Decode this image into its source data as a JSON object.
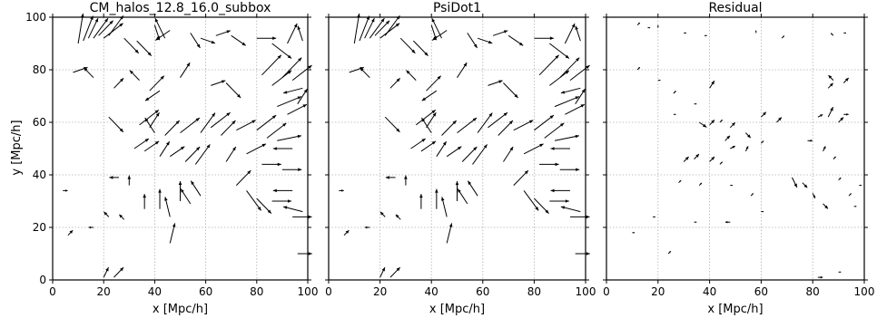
{
  "chart_data": [
    {
      "type": "quiver",
      "title": "CM_halos_12.8_16.0_subbox",
      "xlabel": "x [Mpc/h]",
      "ylabel": "y [Mpc/h]",
      "xlim": [
        0,
        100
      ],
      "ylim": [
        0,
        100
      ],
      "xticks": [
        "0",
        "20",
        "40",
        "60",
        "80",
        "100"
      ],
      "yticks": [
        "0",
        "20",
        "40",
        "60",
        "80",
        "100"
      ],
      "grid": true,
      "vectors": [
        [
          10,
          90,
          1,
          6
        ],
        [
          12,
          91,
          2,
          5
        ],
        [
          14,
          92,
          2,
          4
        ],
        [
          16,
          92,
          3,
          4
        ],
        [
          18,
          93,
          3,
          3
        ],
        [
          20,
          92,
          4,
          3
        ],
        [
          22,
          93,
          3,
          4
        ],
        [
          28,
          92,
          3,
          -3
        ],
        [
          33,
          91,
          3,
          -3
        ],
        [
          40,
          97,
          1,
          -3
        ],
        [
          44,
          92,
          -2,
          4
        ],
        [
          46,
          95,
          -3,
          -2
        ],
        [
          54,
          94,
          2,
          -3
        ],
        [
          58,
          92,
          3,
          -1
        ],
        [
          64,
          93,
          3,
          1
        ],
        [
          70,
          93,
          3,
          -2
        ],
        [
          80,
          92,
          4,
          0
        ],
        [
          86,
          90,
          4,
          -3
        ],
        [
          92,
          90,
          2,
          4
        ],
        [
          98,
          91,
          -1,
          3
        ],
        [
          8,
          79,
          3,
          1
        ],
        [
          16,
          77,
          -2,
          2
        ],
        [
          24,
          73,
          2,
          2
        ],
        [
          34,
          76,
          -2,
          2
        ],
        [
          38,
          72,
          3,
          3
        ],
        [
          42,
          72,
          -3,
          -2
        ],
        [
          50,
          77,
          2,
          3
        ],
        [
          62,
          74,
          3,
          1
        ],
        [
          68,
          75,
          3,
          -3
        ],
        [
          82,
          78,
          4,
          4
        ],
        [
          86,
          74,
          4,
          3
        ],
        [
          90,
          77,
          4,
          4
        ],
        [
          94,
          76,
          4,
          3
        ],
        [
          98,
          73,
          -4,
          -1
        ],
        [
          88,
          66,
          5,
          2
        ],
        [
          92,
          63,
          4,
          2
        ],
        [
          96,
          67,
          2,
          3
        ],
        [
          22,
          62,
          3,
          -3
        ],
        [
          34,
          59,
          4,
          3
        ],
        [
          38,
          58,
          2,
          3
        ],
        [
          40,
          56,
          -2,
          3
        ],
        [
          44,
          55,
          3,
          3
        ],
        [
          50,
          56,
          4,
          3
        ],
        [
          58,
          56,
          3,
          4
        ],
        [
          62,
          58,
          4,
          3
        ],
        [
          66,
          55,
          3,
          3
        ],
        [
          72,
          57,
          4,
          2
        ],
        [
          80,
          57,
          4,
          3
        ],
        [
          84,
          54,
          4,
          3
        ],
        [
          88,
          53,
          5,
          1
        ],
        [
          94,
          50,
          -4,
          0
        ],
        [
          32,
          50,
          3,
          2
        ],
        [
          36,
          49,
          3,
          2
        ],
        [
          42,
          47,
          2,
          3
        ],
        [
          46,
          47,
          3,
          2
        ],
        [
          52,
          45,
          3,
          3
        ],
        [
          56,
          44,
          3,
          4
        ],
        [
          68,
          45,
          2,
          3
        ],
        [
          76,
          48,
          4,
          2
        ],
        [
          82,
          44,
          4,
          0
        ],
        [
          90,
          42,
          4,
          0
        ],
        [
          26,
          39,
          -2,
          0
        ],
        [
          30,
          36,
          0,
          2
        ],
        [
          36,
          27,
          0,
          3
        ],
        [
          42,
          27,
          0,
          4
        ],
        [
          46,
          24,
          -1,
          4
        ],
        [
          50,
          30,
          0,
          4
        ],
        [
          54,
          29,
          -2,
          3
        ],
        [
          58,
          32,
          -2,
          3
        ],
        [
          72,
          36,
          3,
          3
        ],
        [
          76,
          34,
          3,
          -4
        ],
        [
          80,
          31,
          3,
          -3
        ],
        [
          86,
          30,
          4,
          0
        ],
        [
          94,
          34,
          -4,
          0
        ],
        [
          98,
          26,
          -4,
          1
        ],
        [
          46,
          14,
          1,
          4
        ],
        [
          22,
          24,
          -1,
          1
        ],
        [
          28,
          23,
          -1,
          1
        ],
        [
          16,
          20,
          -1,
          0
        ],
        [
          4,
          34,
          1,
          0
        ],
        [
          6,
          17,
          1,
          1
        ],
        [
          20,
          1,
          1,
          2
        ],
        [
          24,
          1,
          2,
          2
        ],
        [
          94,
          24,
          4,
          0
        ],
        [
          96,
          10,
          3,
          0
        ]
      ]
    },
    {
      "type": "quiver",
      "title": "PsiDot1",
      "xlabel": "x [Mpc/h]",
      "xlim": [
        0,
        100
      ],
      "ylim": [
        0,
        100
      ],
      "xticks": [
        "0",
        "20",
        "40",
        "60",
        "80",
        "100"
      ],
      "grid": true,
      "vectors": [
        [
          10,
          90,
          1,
          6
        ],
        [
          12,
          91,
          2,
          5
        ],
        [
          14,
          92,
          2,
          4
        ],
        [
          16,
          92,
          3,
          4
        ],
        [
          18,
          93,
          3,
          3
        ],
        [
          20,
          92,
          4,
          3
        ],
        [
          22,
          93,
          3,
          4
        ],
        [
          28,
          92,
          3,
          -3
        ],
        [
          33,
          91,
          3,
          -3
        ],
        [
          40,
          97,
          1,
          -3
        ],
        [
          44,
          92,
          -2,
          4
        ],
        [
          46,
          95,
          -3,
          -2
        ],
        [
          54,
          94,
          2,
          -3
        ],
        [
          58,
          92,
          3,
          -1
        ],
        [
          64,
          93,
          3,
          1
        ],
        [
          70,
          93,
          3,
          -2
        ],
        [
          80,
          92,
          4,
          0
        ],
        [
          86,
          90,
          4,
          -3
        ],
        [
          92,
          90,
          2,
          4
        ],
        [
          98,
          91,
          -1,
          3
        ],
        [
          8,
          79,
          3,
          1
        ],
        [
          16,
          77,
          -2,
          2
        ],
        [
          24,
          73,
          2,
          2
        ],
        [
          34,
          76,
          -2,
          2
        ],
        [
          38,
          72,
          3,
          3
        ],
        [
          42,
          72,
          -3,
          -2
        ],
        [
          50,
          77,
          2,
          3
        ],
        [
          62,
          74,
          3,
          1
        ],
        [
          68,
          75,
          3,
          -3
        ],
        [
          82,
          78,
          4,
          4
        ],
        [
          86,
          74,
          4,
          3
        ],
        [
          90,
          77,
          4,
          4
        ],
        [
          94,
          76,
          4,
          3
        ],
        [
          98,
          73,
          -4,
          -1
        ],
        [
          88,
          66,
          5,
          2
        ],
        [
          92,
          63,
          4,
          2
        ],
        [
          96,
          67,
          2,
          3
        ],
        [
          22,
          62,
          3,
          -3
        ],
        [
          34,
          59,
          4,
          3
        ],
        [
          38,
          58,
          2,
          3
        ],
        [
          40,
          56,
          -2,
          3
        ],
        [
          44,
          55,
          3,
          3
        ],
        [
          50,
          56,
          4,
          3
        ],
        [
          58,
          56,
          3,
          4
        ],
        [
          62,
          58,
          4,
          3
        ],
        [
          66,
          55,
          3,
          3
        ],
        [
          72,
          57,
          4,
          2
        ],
        [
          80,
          57,
          4,
          3
        ],
        [
          84,
          54,
          4,
          3
        ],
        [
          88,
          53,
          5,
          1
        ],
        [
          94,
          50,
          -4,
          0
        ],
        [
          32,
          50,
          3,
          2
        ],
        [
          36,
          49,
          3,
          2
        ],
        [
          42,
          47,
          2,
          3
        ],
        [
          46,
          47,
          3,
          2
        ],
        [
          52,
          45,
          3,
          3
        ],
        [
          56,
          44,
          3,
          4
        ],
        [
          68,
          45,
          2,
          3
        ],
        [
          76,
          48,
          4,
          2
        ],
        [
          82,
          44,
          4,
          0
        ],
        [
          90,
          42,
          4,
          0
        ],
        [
          26,
          39,
          -2,
          0
        ],
        [
          30,
          36,
          0,
          2
        ],
        [
          36,
          27,
          0,
          3
        ],
        [
          42,
          27,
          0,
          4
        ],
        [
          46,
          24,
          -1,
          4
        ],
        [
          50,
          30,
          0,
          4
        ],
        [
          54,
          29,
          -2,
          3
        ],
        [
          58,
          32,
          -2,
          3
        ],
        [
          72,
          36,
          3,
          3
        ],
        [
          76,
          34,
          3,
          -4
        ],
        [
          80,
          31,
          3,
          -3
        ],
        [
          86,
          30,
          4,
          0
        ],
        [
          94,
          34,
          -4,
          0
        ],
        [
          98,
          26,
          -4,
          1
        ],
        [
          46,
          14,
          1,
          4
        ],
        [
          22,
          24,
          -1,
          1
        ],
        [
          28,
          23,
          -1,
          1
        ],
        [
          16,
          20,
          -1,
          0
        ],
        [
          4,
          34,
          1,
          0
        ],
        [
          6,
          17,
          1,
          1
        ],
        [
          20,
          1,
          1,
          2
        ],
        [
          24,
          1,
          2,
          2
        ],
        [
          94,
          24,
          4,
          0
        ],
        [
          96,
          10,
          3,
          0
        ]
      ]
    },
    {
      "type": "quiver",
      "title": "Residual",
      "xlabel": "x [Mpc/h]",
      "xlim": [
        0,
        100
      ],
      "ylim": [
        0,
        100
      ],
      "xticks": [
        "0",
        "20",
        "40",
        "60",
        "80",
        "100"
      ],
      "grid": true,
      "vectors": [
        [
          12,
          97,
          0.5,
          0.5
        ],
        [
          16,
          96,
          0.5,
          0
        ],
        [
          20,
          96,
          0,
          0.5
        ],
        [
          30,
          94,
          0.5,
          0
        ],
        [
          38,
          93,
          0.5,
          0
        ],
        [
          58,
          94,
          0,
          0.5
        ],
        [
          68,
          92,
          0.5,
          0.5
        ],
        [
          88,
          93,
          -0.5,
          0.5
        ],
        [
          92,
          94,
          0.5,
          0
        ],
        [
          12,
          80,
          0.5,
          0.5
        ],
        [
          20,
          76,
          0.5,
          0
        ],
        [
          40,
          73,
          1,
          1.5
        ],
        [
          86,
          73,
          1,
          1
        ],
        [
          88,
          76,
          -1,
          1
        ],
        [
          92,
          75,
          1,
          1
        ],
        [
          26,
          71,
          0.5,
          0.5
        ],
        [
          34,
          67,
          0.5,
          0
        ],
        [
          26,
          63,
          0.5,
          0
        ],
        [
          36,
          60,
          1.5,
          -1
        ],
        [
          40,
          59,
          1,
          1
        ],
        [
          44,
          60,
          0.5,
          0.5
        ],
        [
          48,
          58,
          1,
          1
        ],
        [
          54,
          56,
          1,
          -1
        ],
        [
          60,
          62,
          1,
          1
        ],
        [
          66,
          60,
          1,
          1
        ],
        [
          82,
          62,
          1,
          0.5
        ],
        [
          86,
          62,
          1,
          2
        ],
        [
          90,
          60,
          1,
          1
        ],
        [
          92,
          63,
          1,
          0
        ],
        [
          46,
          53,
          1,
          1
        ],
        [
          48,
          50,
          1,
          0.5
        ],
        [
          54,
          49,
          0.5,
          1
        ],
        [
          60,
          52,
          0.5,
          0.5
        ],
        [
          30,
          45,
          1,
          1
        ],
        [
          34,
          46,
          1,
          1
        ],
        [
          40,
          45,
          1,
          1
        ],
        [
          44,
          44,
          0.5,
          0.5
        ],
        [
          78,
          53,
          1,
          0
        ],
        [
          84,
          49,
          0.5,
          1
        ],
        [
          88,
          46,
          0.5,
          0.5
        ],
        [
          72,
          39,
          1,
          -2
        ],
        [
          76,
          37,
          1,
          -1
        ],
        [
          80,
          33,
          0.5,
          -1
        ],
        [
          84,
          29,
          1,
          -1
        ],
        [
          90,
          38,
          0.5,
          0.5
        ],
        [
          94,
          32,
          0.5,
          0.5
        ],
        [
          28,
          37,
          0.5,
          0.5
        ],
        [
          36,
          36,
          0.5,
          0.5
        ],
        [
          48,
          36,
          0.5,
          0
        ],
        [
          56,
          32,
          0.5,
          0.5
        ],
        [
          60,
          26,
          0.5,
          0
        ],
        [
          48,
          22,
          -1,
          0
        ],
        [
          34,
          22,
          0.5,
          0
        ],
        [
          10,
          18,
          0.5,
          0
        ],
        [
          18,
          24,
          0.5,
          0
        ],
        [
          24,
          10,
          0.5,
          0.5
        ],
        [
          82,
          1,
          1,
          0
        ],
        [
          90,
          3,
          0.5,
          0
        ],
        [
          96,
          28,
          0.5,
          0
        ],
        [
          98,
          36,
          0.5,
          0
        ]
      ]
    }
  ]
}
